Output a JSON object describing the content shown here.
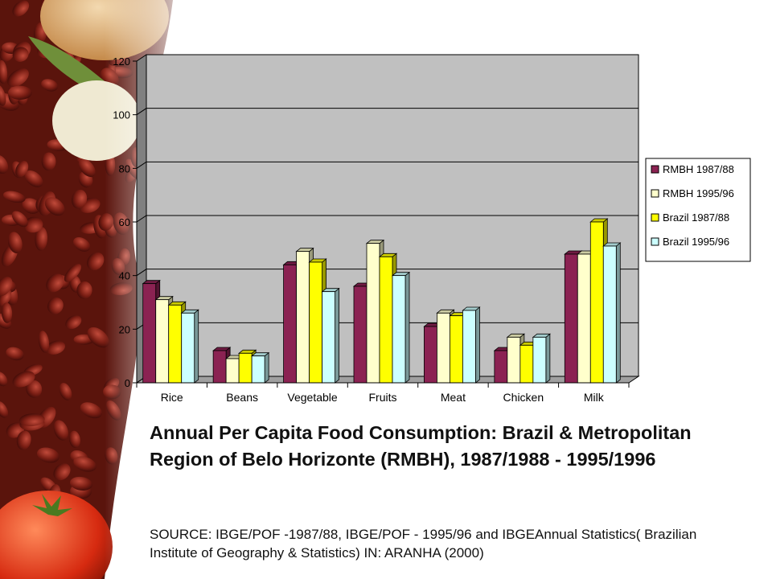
{
  "caption": {
    "title": "Annual Per Capita Food Consumption: Brazil & Metropolitan Region of Belo Horizonte (RMBH), 1987/1988 - 1995/1996",
    "source": "SOURCE: IBGE/POF -1987/88, IBGE/POF - 1995/96 and IBGEAnnual Statistics( Brazilian Institute of Geography & Statistics) IN: ARANHA (2000)"
  },
  "decor": {
    "left_panel": "food-photo-beans-onion-cauliflower-tomato"
  },
  "chart_data": {
    "type": "bar",
    "style": "3d-clustered-column",
    "categories": [
      "Rice",
      "Beans",
      "Vegetable",
      "Fruits",
      "Meat",
      "Chicken",
      "Milk"
    ],
    "series": [
      {
        "name": "RMBH 1987/88",
        "color": "#8b2252",
        "values": [
          37,
          12,
          44,
          36,
          21,
          12,
          48
        ]
      },
      {
        "name": "RMBH 1995/96",
        "color": "#ffffcc",
        "values": [
          31,
          9,
          49,
          52,
          26,
          17,
          48
        ]
      },
      {
        "name": "Brazil 1987/88",
        "color": "#ffff00",
        "values": [
          29,
          11,
          45,
          47,
          25,
          14,
          60
        ]
      },
      {
        "name": "Brazil 1995/96",
        "color": "#ccffff",
        "values": [
          26,
          10,
          34,
          40,
          27,
          17,
          51
        ]
      }
    ],
    "ylim": [
      0,
      120
    ],
    "yticks": [
      "0",
      "20",
      "40",
      "60",
      "80",
      "100",
      "120"
    ],
    "grid": true,
    "legend": "right",
    "wall_color": "#c0c0c0"
  }
}
